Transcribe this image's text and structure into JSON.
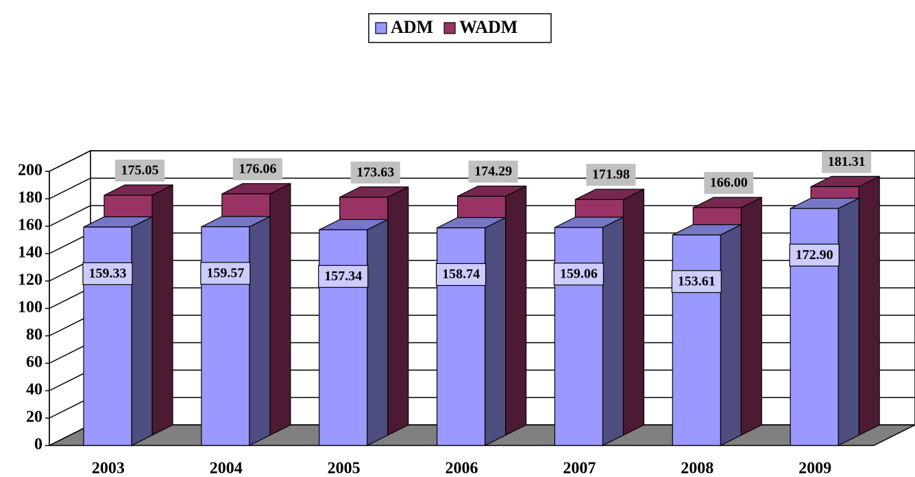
{
  "chart_data": {
    "type": "bar3d",
    "categories": [
      "2003",
      "2004",
      "2005",
      "2006",
      "2007",
      "2008",
      "2009"
    ],
    "series": [
      {
        "name": "ADM",
        "color": "#9999ff",
        "values": [
          159.33,
          159.57,
          157.34,
          158.74,
          159.06,
          153.61,
          172.9
        ],
        "value_labels": [
          "159.33",
          "159.57",
          "157.34",
          "158.74",
          "159.06",
          "153.61",
          "172.90"
        ]
      },
      {
        "name": "WADM",
        "color": "#993366",
        "values": [
          175.05,
          176.06,
          173.63,
          174.29,
          171.98,
          166.0,
          181.31
        ],
        "value_labels": [
          "175.05",
          "176.06",
          "173.63",
          "174.29",
          "171.98",
          "166.00",
          "181.31"
        ]
      }
    ],
    "ylim": [
      0,
      200
    ],
    "yticks": [
      0,
      20,
      40,
      60,
      80,
      100,
      120,
      140,
      160,
      180,
      200
    ],
    "grid": true,
    "legend": "top"
  }
}
